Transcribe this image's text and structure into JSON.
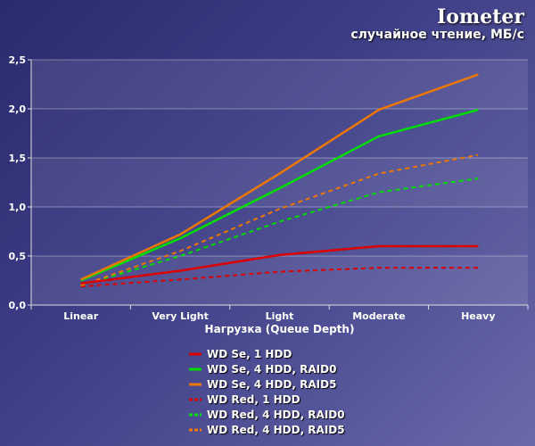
{
  "header": {
    "title": "Iometer",
    "subtitle": "случайное чтение, МБ/с"
  },
  "chart_data": {
    "type": "line",
    "title": "Iometer",
    "subtitle": "случайное чтение, МБ/с",
    "xlabel": "Нагрузка (Queue Depth)",
    "ylabel": "",
    "categories": [
      "Linear",
      "Very Light",
      "Light",
      "Moderate",
      "Heavy"
    ],
    "ylim": [
      0,
      2.5
    ],
    "yticks": [
      0,
      0.5,
      1.0,
      1.5,
      2.0,
      2.5
    ],
    "ytick_labels": [
      "0,0",
      "0,5",
      "1,0",
      "1,5",
      "2,0",
      "2,5"
    ],
    "grid": true,
    "legend_position": "bottom",
    "series": [
      {
        "name": "WD Se, 1 HDD",
        "color": "#dd0000",
        "dashed": false,
        "values": [
          0.22,
          0.35,
          0.51,
          0.6,
          0.6
        ]
      },
      {
        "name": "WD Se, 4 HDD, RAID0",
        "color": "#00dd00",
        "dashed": false,
        "values": [
          0.25,
          0.68,
          1.19,
          1.72,
          1.99
        ]
      },
      {
        "name": "WD Se, 4 HDD, RAID5",
        "color": "#ee7700",
        "dashed": false,
        "values": [
          0.26,
          0.72,
          1.34,
          1.99,
          2.35
        ]
      },
      {
        "name": "WD Red, 1 HDD",
        "color": "#dd0000",
        "dashed": true,
        "values": [
          0.19,
          0.26,
          0.34,
          0.38,
          0.38
        ]
      },
      {
        "name": "WD Red, 4 HDD, RAID0",
        "color": "#00dd00",
        "dashed": true,
        "values": [
          0.2,
          0.5,
          0.85,
          1.15,
          1.29
        ]
      },
      {
        "name": "WD Red, 4 HDD, RAID5",
        "color": "#ee7700",
        "dashed": true,
        "values": [
          0.2,
          0.55,
          0.98,
          1.34,
          1.53
        ]
      }
    ]
  }
}
